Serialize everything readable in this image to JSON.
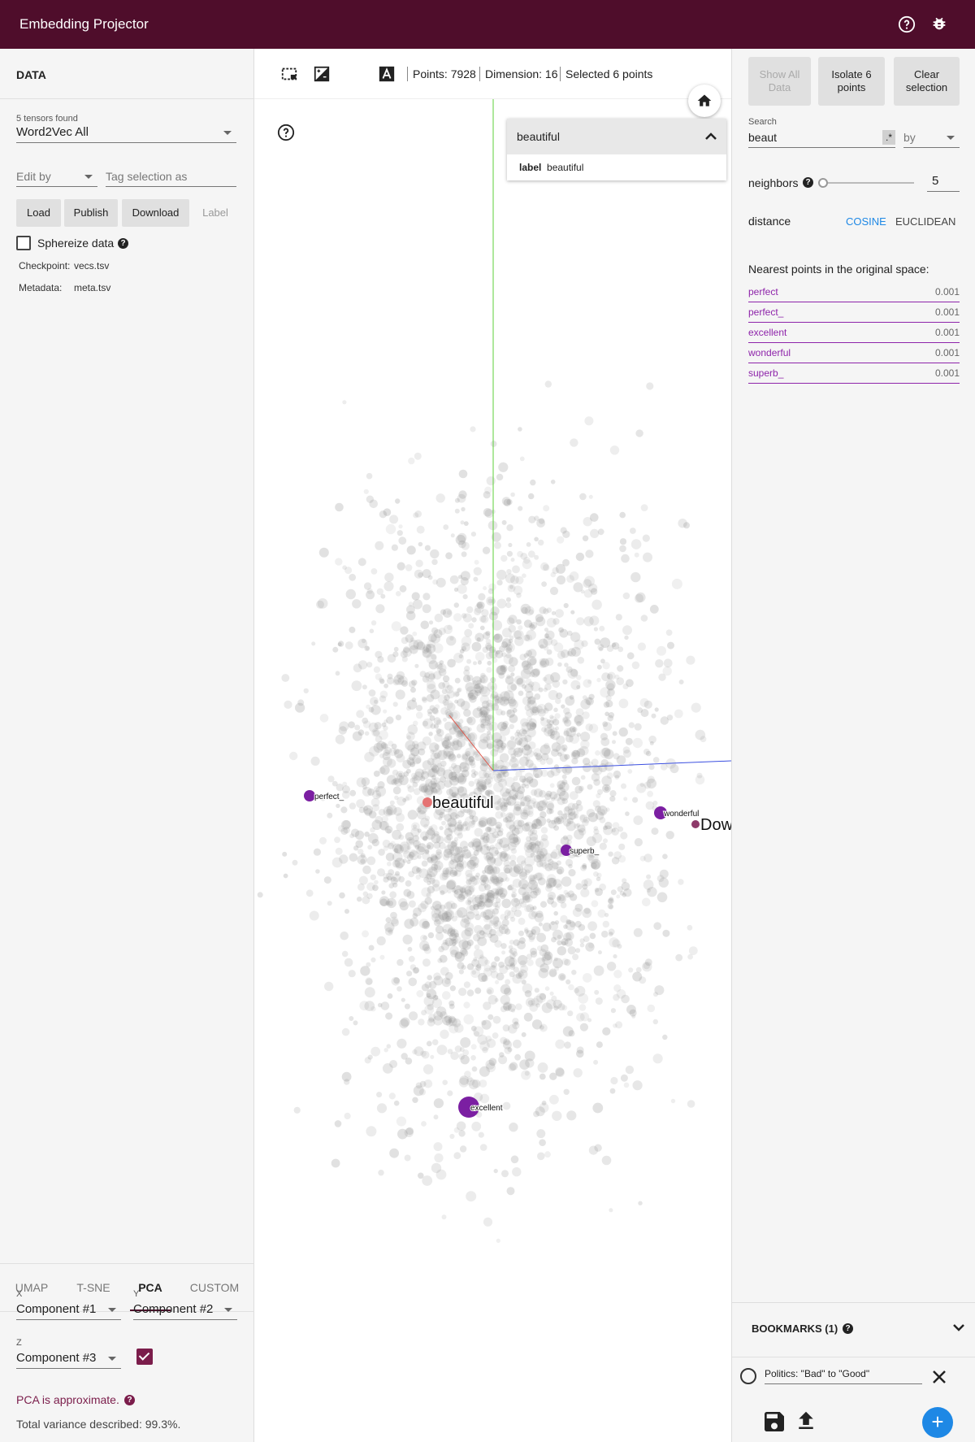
{
  "header": {
    "title": "Embedding Projector",
    "help_icon": "help-circle-icon",
    "bug_icon": "bug-icon"
  },
  "data_panel": {
    "title": "DATA",
    "tensors_found": "5 tensors found",
    "tensor_selected": "Word2Vec All",
    "edit_by_placeholder": "Edit by",
    "tag_selection_placeholder": "Tag selection as",
    "buttons": {
      "load": "Load",
      "publish": "Publish",
      "download": "Download",
      "label": "Label"
    },
    "sphereize_label": "Sphereize data",
    "checkpoint_label": "Checkpoint:",
    "checkpoint_value": "vecs.tsv",
    "metadata_label": "Metadata:",
    "metadata_value": "meta.tsv"
  },
  "projection": {
    "tabs": [
      {
        "label": "UMAP"
      },
      {
        "label": "T-SNE"
      },
      {
        "label": "PCA"
      },
      {
        "label": "CUSTOM"
      }
    ],
    "active_tab": "PCA",
    "x_label": "X",
    "x_value": "Component #1",
    "y_label": "Y",
    "y_value": "Component #2",
    "z_label": "Z",
    "z_value": "Component #3",
    "z_enabled": true,
    "approx_text": "PCA is approximate.",
    "variance_text": "Total variance described: 99.3%."
  },
  "toolbar": {
    "points": "Points: 7928",
    "dimension": "Dimension: 16",
    "selected": "Selected 6 points"
  },
  "tooltip": {
    "title": "beautiful",
    "key": "label",
    "value": "beautiful"
  },
  "scatter_labels": [
    {
      "text": "perfect_",
      "color": "#7b1fa2",
      "size": "small"
    },
    {
      "text": "beautiful",
      "color": "#e57373",
      "size": "large"
    },
    {
      "text": "wonderful",
      "color": "#7b1fa2",
      "size": "small"
    },
    {
      "text": "Dow",
      "color": "#8e3a6a",
      "size": "large"
    },
    {
      "text": "superb_",
      "color": "#7b1fa2",
      "size": "small"
    },
    {
      "text": "excellent",
      "color": "#7b1fa2",
      "size": "small"
    }
  ],
  "inspector": {
    "show_all": "Show All Data",
    "isolate": "Isolate 6 points",
    "clear": "Clear selection",
    "search_label": "Search",
    "search_value": "beaut",
    "regex_label": ".*",
    "by_placeholder": "by",
    "neighbors_label": "neighbors",
    "neighbors_value": "5",
    "neighbors_fraction": 0.0,
    "distance_label": "distance",
    "cosine": "COSINE",
    "euclidean": "EUCLIDEAN",
    "nearest_title": "Nearest points in the original space:",
    "nearest": [
      {
        "label": "perfect",
        "value": "0.001"
      },
      {
        "label": "perfect_",
        "value": "0.001"
      },
      {
        "label": "excellent",
        "value": "0.001"
      },
      {
        "label": "wonderful",
        "value": "0.001"
      },
      {
        "label": "superb_",
        "value": "0.001"
      }
    ]
  },
  "bookmarks": {
    "title": "BOOKMARKS (1)",
    "items": [
      {
        "label": "Politics: \"Bad\" to \"Good\""
      }
    ]
  },
  "colors": {
    "brand": "#4f0d2b",
    "selected": "#7b1fa2",
    "accent": "#1e88e5"
  }
}
